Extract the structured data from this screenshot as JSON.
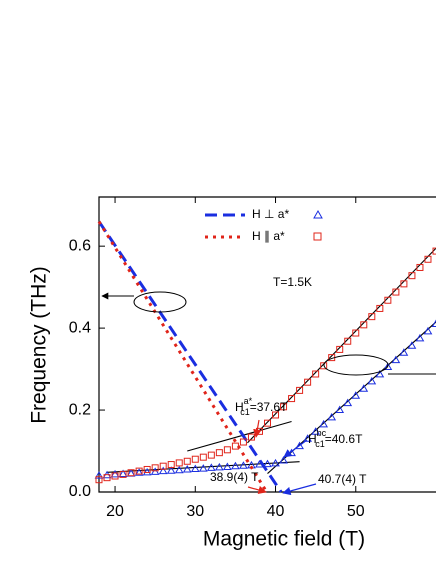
{
  "chart_data": {
    "type": "line",
    "xlabel": "Magnetic field (T)",
    "ylabel": "Frequency (THz)",
    "xlim": [
      18,
      60
    ],
    "ylim": [
      0,
      0.72
    ],
    "xticks": [
      20,
      30,
      40,
      50
    ],
    "yticks": [
      {
        "value": 0,
        "label": "0.0"
      },
      0.2,
      0.4,
      0.6
    ],
    "series": [
      {
        "name": "H ⊥ a*",
        "color": "#1a2ee0",
        "marker": "triangle",
        "line": {
          "x": [
            18,
            40.7
          ],
          "y": [
            0.66,
            0
          ]
        },
        "points": {
          "x": [
            18,
            19,
            20,
            21,
            22,
            23,
            24,
            25,
            26,
            27,
            28,
            29,
            30,
            31,
            32,
            33,
            34,
            35,
            36,
            37,
            38,
            39,
            40,
            41,
            42,
            43,
            44,
            45,
            46,
            47,
            48,
            49,
            50,
            51,
            52,
            53,
            54,
            55,
            56,
            57,
            58,
            59,
            60
          ],
          "y": [
            0.04,
            0.041,
            0.043,
            0.044,
            0.045,
            0.047,
            0.048,
            0.049,
            0.051,
            0.052,
            0.053,
            0.055,
            0.056,
            0.057,
            0.059,
            0.06,
            0.061,
            0.063,
            0.064,
            0.065,
            0.067,
            0.068,
            0.07,
            0.077,
            0.095,
            0.112,
            0.13,
            0.147,
            0.165,
            0.182,
            0.2,
            0.217,
            0.235,
            0.252,
            0.27,
            0.287,
            0.305,
            0.322,
            0.34,
            0.357,
            0.375,
            0.392,
            0.41
          ]
        }
      },
      {
        "name": "H ∥ a*",
        "color": "#e0241a",
        "marker": "square",
        "line": {
          "x": [
            18,
            38.9
          ],
          "y": [
            0.66,
            0
          ]
        },
        "points": {
          "x": [
            18,
            19,
            20,
            21,
            22,
            23,
            24,
            25,
            26,
            27,
            28,
            29,
            30,
            31,
            32,
            33,
            34,
            35,
            36,
            37,
            38,
            39,
            40,
            41,
            42,
            43,
            44,
            45,
            46,
            47,
            48,
            49,
            50,
            51,
            52,
            53,
            54,
            55,
            56,
            57,
            58,
            59,
            60
          ],
          "y": [
            0.03,
            0.035,
            0.039,
            0.043,
            0.047,
            0.051,
            0.055,
            0.059,
            0.063,
            0.067,
            0.071,
            0.075,
            0.08,
            0.085,
            0.09,
            0.096,
            0.103,
            0.112,
            0.122,
            0.134,
            0.148,
            0.168,
            0.188,
            0.208,
            0.228,
            0.248,
            0.268,
            0.288,
            0.308,
            0.328,
            0.348,
            0.368,
            0.388,
            0.408,
            0.428,
            0.448,
            0.468,
            0.488,
            0.508,
            0.528,
            0.548,
            0.568,
            0.588
          ]
        }
      }
    ],
    "fits": [
      {
        "color": "#000000",
        "x": [
          29,
          42
        ],
        "y": [
          0.1,
          0.172
        ]
      },
      {
        "color": "#000000",
        "x": [
          36.5,
          60
        ],
        "y": [
          0.12,
          0.595
        ]
      },
      {
        "color": "#000000",
        "x": [
          19,
          43
        ],
        "y": [
          0.048,
          0.074
        ]
      },
      {
        "color": "#000000",
        "x": [
          39,
          60
        ],
        "y": [
          0.045,
          0.415
        ]
      }
    ],
    "annotations": {
      "temperature": "T=1.5K",
      "hc1_a": {
        "main": "H",
        "sup": "a*",
        "sub": "c1",
        "rest": "=37.6T"
      },
      "hc1_bc": {
        "main": "H",
        "sup": "bc",
        "sub": "c1",
        "rest": "=40.6T"
      },
      "red_zero": "38.9(4) T",
      "blue_zero": "40.7(4) T"
    }
  }
}
